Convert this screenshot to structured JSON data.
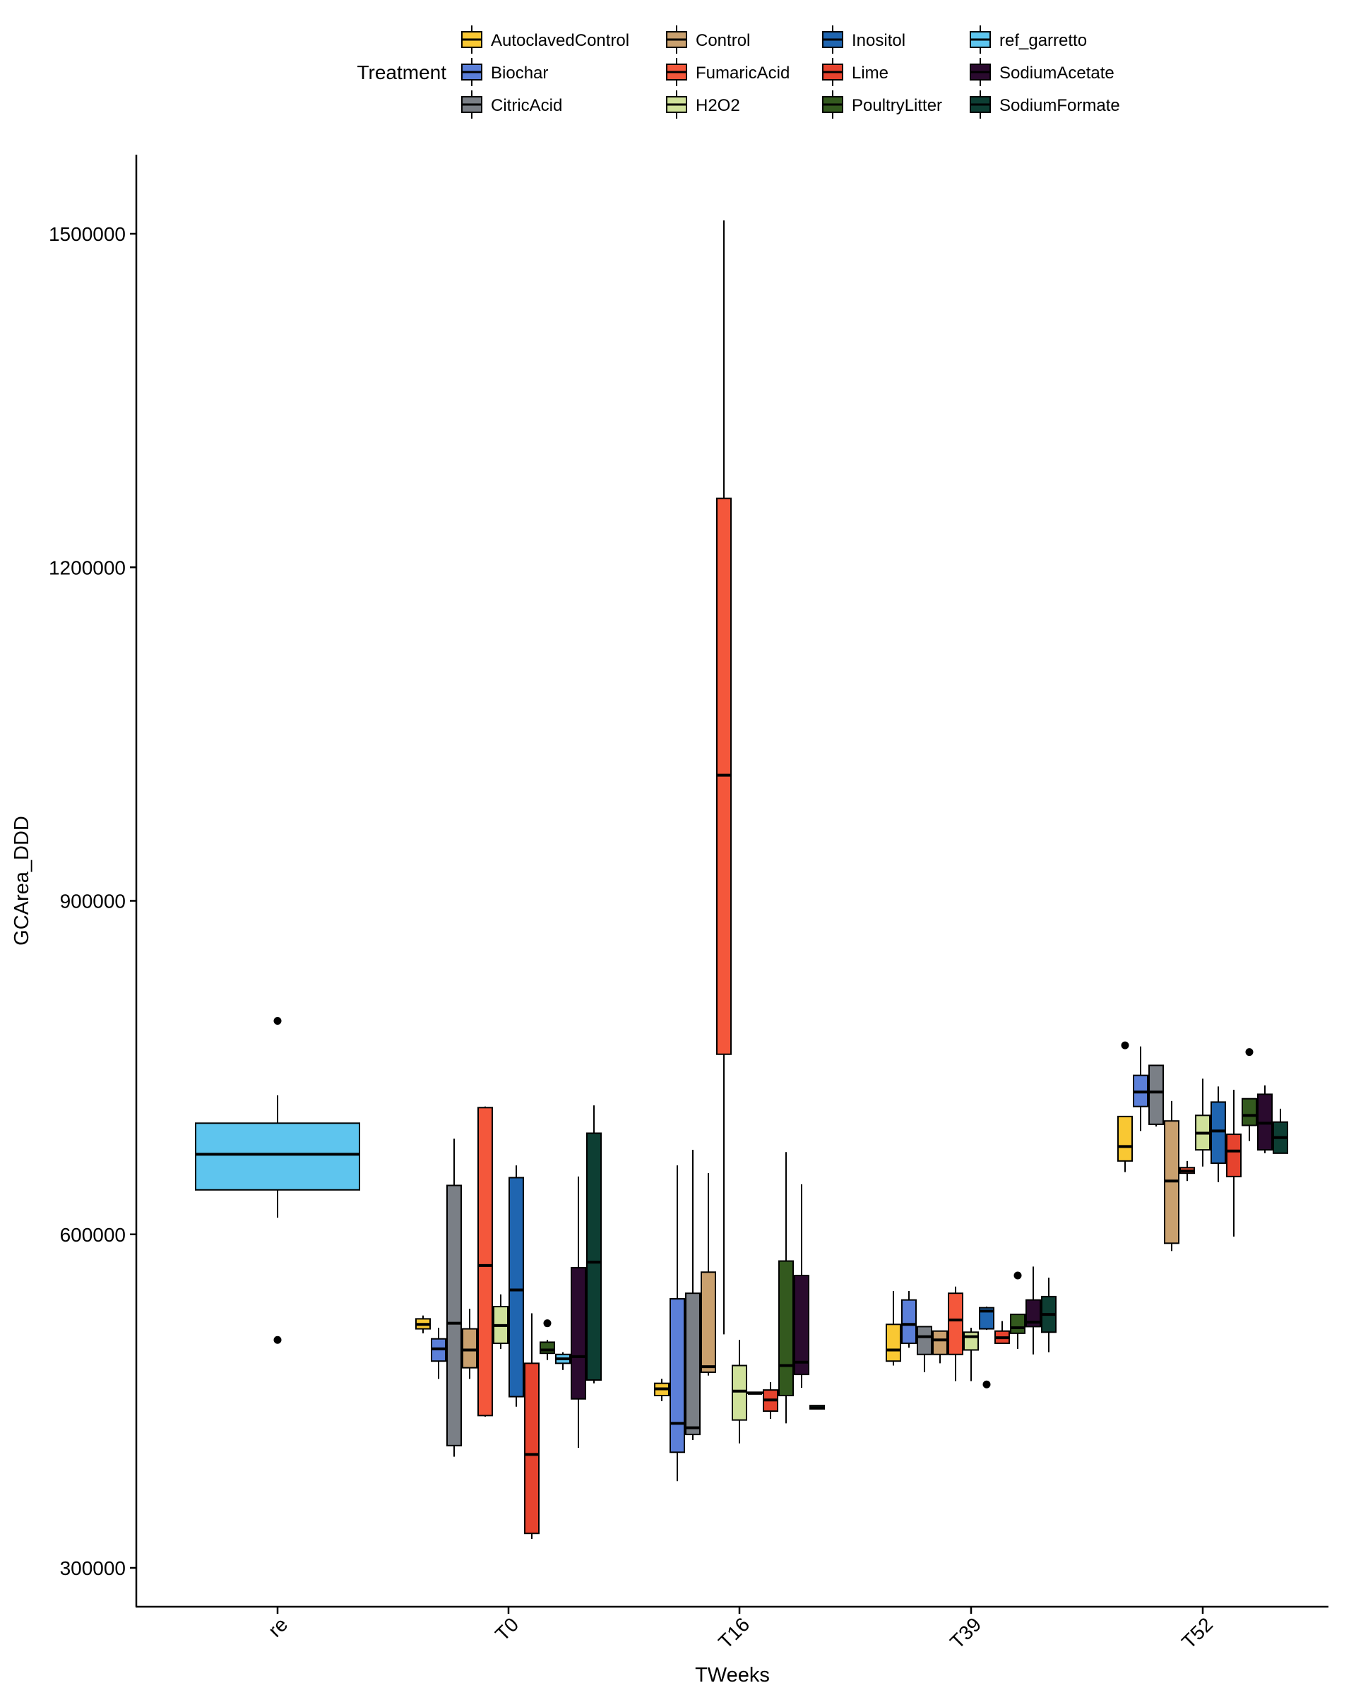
{
  "chart_data": {
    "type": "boxplot",
    "xlabel": "TWeeks",
    "ylabel": "GCArea_DDD",
    "ylim": [
      255000,
      1570000
    ],
    "y_ticks": [
      300000,
      600000,
      900000,
      1200000,
      1500000
    ],
    "y_tick_labels": [
      "300000",
      "600000",
      "900000",
      "1200000",
      "1500000"
    ],
    "groups": [
      "re",
      "T0",
      "T16",
      "T39",
      "T52"
    ],
    "legend": {
      "title": "Treatment",
      "placement": "top",
      "columns": 4,
      "entries": [
        {
          "name": "AutoclavedControl",
          "color": "#F9C833"
        },
        {
          "name": "Biochar",
          "color": "#5B7FD9"
        },
        {
          "name": "CitricAcid",
          "color": "#7A7F86"
        },
        {
          "name": "Control",
          "color": "#C9A06E"
        },
        {
          "name": "FumaricAcid",
          "color": "#F4573B"
        },
        {
          "name": "H2O2",
          "color": "#CFE19A"
        },
        {
          "name": "Inositol",
          "color": "#1F65B0"
        },
        {
          "name": "Lime",
          "color": "#E6432E"
        },
        {
          "name": "PoultryLitter",
          "color": "#33591E"
        },
        {
          "name": "ref_garretto",
          "color": "#5EC5EE"
        },
        {
          "name": "SodiumAcetate",
          "color": "#2A0A2E"
        },
        {
          "name": "SodiumFormate",
          "color": "#0D3E33"
        }
      ]
    },
    "boxes": [
      {
        "group": "re",
        "treatment": "ref_garretto",
        "q1": 640000,
        "median": 672000,
        "q3": 700000,
        "whisker_low": 615000,
        "whisker_high": 725000,
        "outliers": [
          792000,
          505000
        ]
      },
      {
        "group": "T0",
        "treatment": "AutoclavedControl",
        "q1": 515000,
        "median": 519000,
        "q3": 524000,
        "whisker_low": 511000,
        "whisker_high": 527000,
        "outliers": []
      },
      {
        "group": "T0",
        "treatment": "Biochar",
        "q1": 486000,
        "median": 497000,
        "q3": 506000,
        "whisker_low": 470000,
        "whisker_high": 516000,
        "outliers": []
      },
      {
        "group": "T0",
        "treatment": "CitricAcid",
        "q1": 410000,
        "median": 520000,
        "q3": 644000,
        "whisker_low": 400000,
        "whisker_high": 686000,
        "outliers": []
      },
      {
        "group": "T0",
        "treatment": "Control",
        "q1": 480000,
        "median": 496000,
        "q3": 515000,
        "whisker_low": 470000,
        "whisker_high": 533000,
        "outliers": []
      },
      {
        "group": "T0",
        "treatment": "FumaricAcid",
        "q1": 437000,
        "median": 572000,
        "q3": 714000,
        "whisker_low": 436000,
        "whisker_high": 715000,
        "outliers": []
      },
      {
        "group": "T0",
        "treatment": "H2O2",
        "q1": 502000,
        "median": 518000,
        "q3": 535000,
        "whisker_low": 497000,
        "whisker_high": 546000,
        "outliers": []
      },
      {
        "group": "T0",
        "treatment": "Inositol",
        "q1": 454000,
        "median": 550000,
        "q3": 651000,
        "whisker_low": 445000,
        "whisker_high": 662000,
        "outliers": []
      },
      {
        "group": "T0",
        "treatment": "Lime",
        "q1": 331000,
        "median": 402000,
        "q3": 484000,
        "whisker_low": 326000,
        "whisker_high": 529000,
        "outliers": []
      },
      {
        "group": "T0",
        "treatment": "PoultryLitter",
        "q1": 493000,
        "median": 496000,
        "q3": 503000,
        "whisker_low": 487000,
        "whisker_high": 505000,
        "outliers": [
          520000
        ]
      },
      {
        "group": "T0",
        "treatment": "ref_garretto",
        "q1": 484000,
        "median": 488000,
        "q3": 492000,
        "whisker_low": 478000,
        "whisker_high": 494000,
        "outliers": []
      },
      {
        "group": "T0",
        "treatment": "SodiumAcetate",
        "q1": 452000,
        "median": 490000,
        "q3": 570000,
        "whisker_low": 408000,
        "whisker_high": 652000,
        "outliers": []
      },
      {
        "group": "T0",
        "treatment": "SodiumFormate",
        "q1": 469000,
        "median": 575000,
        "q3": 691000,
        "whisker_low": 466000,
        "whisker_high": 716000,
        "outliers": []
      },
      {
        "group": "T16",
        "treatment": "AutoclavedControl",
        "q1": 455000,
        "median": 461000,
        "q3": 466000,
        "whisker_low": 450000,
        "whisker_high": 470000,
        "outliers": []
      },
      {
        "group": "T16",
        "treatment": "Biochar",
        "q1": 404000,
        "median": 430000,
        "q3": 542000,
        "whisker_low": 378000,
        "whisker_high": 662000,
        "outliers": []
      },
      {
        "group": "T16",
        "treatment": "CitricAcid",
        "q1": 420000,
        "median": 426000,
        "q3": 547000,
        "whisker_low": 415000,
        "whisker_high": 676000,
        "outliers": []
      },
      {
        "group": "T16",
        "treatment": "Control",
        "q1": 476000,
        "median": 481000,
        "q3": 566000,
        "whisker_low": 473000,
        "whisker_high": 655000,
        "outliers": []
      },
      {
        "group": "T16",
        "treatment": "FumaricAcid",
        "q1": 762000,
        "median": 1013000,
        "q3": 1262000,
        "whisker_low": 510000,
        "whisker_high": 1512000,
        "outliers": []
      },
      {
        "group": "T16",
        "treatment": "H2O2",
        "q1": 433000,
        "median": 459000,
        "q3": 482000,
        "whisker_low": 412000,
        "whisker_high": 505000,
        "outliers": []
      },
      {
        "group": "T16",
        "treatment": "Inositol",
        "q1": 457000,
        "median": 457000,
        "q3": 458000,
        "whisker_low": 457000,
        "whisker_high": 458000,
        "outliers": []
      },
      {
        "group": "T16",
        "treatment": "Lime",
        "q1": 441000,
        "median": 451000,
        "q3": 460000,
        "whisker_low": 434000,
        "whisker_high": 467000,
        "outliers": []
      },
      {
        "group": "T16",
        "treatment": "PoultryLitter",
        "q1": 455000,
        "median": 482000,
        "q3": 576000,
        "whisker_low": 430000,
        "whisker_high": 674000,
        "outliers": []
      },
      {
        "group": "T16",
        "treatment": "SodiumAcetate",
        "q1": 474000,
        "median": 485000,
        "q3": 563000,
        "whisker_low": 462000,
        "whisker_high": 645000,
        "outliers": []
      },
      {
        "group": "T16",
        "treatment": "SodiumFormate",
        "q1": 443000,
        "median": 444000,
        "q3": 446000,
        "whisker_low": 443000,
        "whisker_high": 446000,
        "outliers": []
      },
      {
        "group": "T39",
        "treatment": "AutoclavedControl",
        "q1": 486000,
        "median": 496000,
        "q3": 519000,
        "whisker_low": 482000,
        "whisker_high": 549000,
        "outliers": []
      },
      {
        "group": "T39",
        "treatment": "Biochar",
        "q1": 502000,
        "median": 519000,
        "q3": 541000,
        "whisker_low": 498000,
        "whisker_high": 549000,
        "outliers": []
      },
      {
        "group": "T39",
        "treatment": "CitricAcid",
        "q1": 492000,
        "median": 508000,
        "q3": 517000,
        "whisker_low": 476000,
        "whisker_high": 517000,
        "outliers": []
      },
      {
        "group": "T39",
        "treatment": "Control",
        "q1": 492000,
        "median": 505000,
        "q3": 513000,
        "whisker_low": 484000,
        "whisker_high": 513000,
        "outliers": []
      },
      {
        "group": "T39",
        "treatment": "FumaricAcid",
        "q1": 492000,
        "median": 523000,
        "q3": 547000,
        "whisker_low": 468000,
        "whisker_high": 553000,
        "outliers": []
      },
      {
        "group": "T39",
        "treatment": "H2O2",
        "q1": 496000,
        "median": 508000,
        "q3": 512000,
        "whisker_low": 468000,
        "whisker_high": 516000,
        "outliers": []
      },
      {
        "group": "T39",
        "treatment": "Inositol",
        "q1": 515000,
        "median": 531000,
        "q3": 534000,
        "whisker_low": 514000,
        "whisker_high": 535000,
        "outliers": [
          465000
        ]
      },
      {
        "group": "T39",
        "treatment": "Lime",
        "q1": 502000,
        "median": 507000,
        "q3": 513000,
        "whisker_low": 502000,
        "whisker_high": 522000,
        "outliers": []
      },
      {
        "group": "T39",
        "treatment": "PoultryLitter",
        "q1": 511000,
        "median": 516000,
        "q3": 528000,
        "whisker_low": 497000,
        "whisker_high": 528000,
        "outliers": [
          563000
        ]
      },
      {
        "group": "T39",
        "treatment": "SodiumAcetate",
        "q1": 517000,
        "median": 521000,
        "q3": 541000,
        "whisker_low": 492000,
        "whisker_high": 571000,
        "outliers": []
      },
      {
        "group": "T39",
        "treatment": "SodiumFormate",
        "q1": 512000,
        "median": 528000,
        "q3": 544000,
        "whisker_low": 494000,
        "whisker_high": 561000,
        "outliers": []
      },
      {
        "group": "T52",
        "treatment": "AutoclavedControl",
        "q1": 666000,
        "median": 679000,
        "q3": 706000,
        "whisker_low": 656000,
        "whisker_high": 706000,
        "outliers": [
          770000
        ]
      },
      {
        "group": "T52",
        "treatment": "Biochar",
        "q1": 715000,
        "median": 728000,
        "q3": 743000,
        "whisker_low": 693000,
        "whisker_high": 769000,
        "outliers": []
      },
      {
        "group": "T52",
        "treatment": "CitricAcid",
        "q1": 699000,
        "median": 728000,
        "q3": 752000,
        "whisker_low": 697000,
        "whisker_high": 752000,
        "outliers": []
      },
      {
        "group": "T52",
        "treatment": "Control",
        "q1": 592000,
        "median": 648000,
        "q3": 702000,
        "whisker_low": 585000,
        "whisker_high": 720000,
        "outliers": []
      },
      {
        "group": "T52",
        "treatment": "FumaricAcid",
        "q1": 655000,
        "median": 657000,
        "q3": 660000,
        "whisker_low": 648000,
        "whisker_high": 666000,
        "outliers": []
      },
      {
        "group": "T52",
        "treatment": "H2O2",
        "q1": 676000,
        "median": 691000,
        "q3": 707000,
        "whisker_low": 661000,
        "whisker_high": 740000,
        "outliers": []
      },
      {
        "group": "T52",
        "treatment": "Inositol",
        "q1": 664000,
        "median": 693000,
        "q3": 719000,
        "whisker_low": 647000,
        "whisker_high": 733000,
        "outliers": []
      },
      {
        "group": "T52",
        "treatment": "Lime",
        "q1": 652000,
        "median": 675000,
        "q3": 690000,
        "whisker_low": 598000,
        "whisker_high": 730000,
        "outliers": []
      },
      {
        "group": "T52",
        "treatment": "PoultryLitter",
        "q1": 698000,
        "median": 707000,
        "q3": 722000,
        "whisker_low": 684000,
        "whisker_high": 722000,
        "outliers": [
          764000
        ]
      },
      {
        "group": "T52",
        "treatment": "SodiumAcetate",
        "q1": 676000,
        "median": 700000,
        "q3": 726000,
        "whisker_low": 673000,
        "whisker_high": 734000,
        "outliers": []
      },
      {
        "group": "T52",
        "treatment": "SodiumFormate",
        "q1": 673000,
        "median": 687000,
        "q3": 701000,
        "whisker_low": 673000,
        "whisker_high": 713000,
        "outliers": []
      }
    ]
  }
}
